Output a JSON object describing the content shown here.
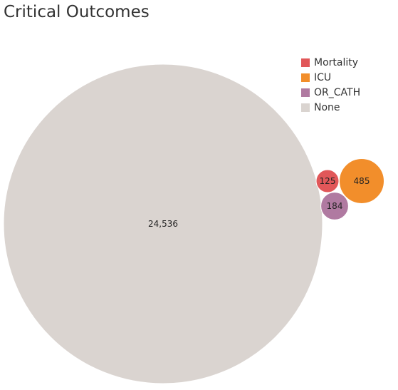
{
  "title": "Critical Outcomes",
  "chart_data": {
    "type": "bubble",
    "title": "Critical Outcomes",
    "legend_position": "top-right",
    "categories": [
      "Mortality",
      "ICU",
      "OR_CATH",
      "None"
    ],
    "values": [
      125,
      485,
      184,
      24536
    ],
    "labels": [
      "125",
      "485",
      "184",
      "24,536"
    ],
    "colors": [
      "#e15759",
      "#f28e2b",
      "#b07aa1",
      "#dad4d0"
    ]
  }
}
